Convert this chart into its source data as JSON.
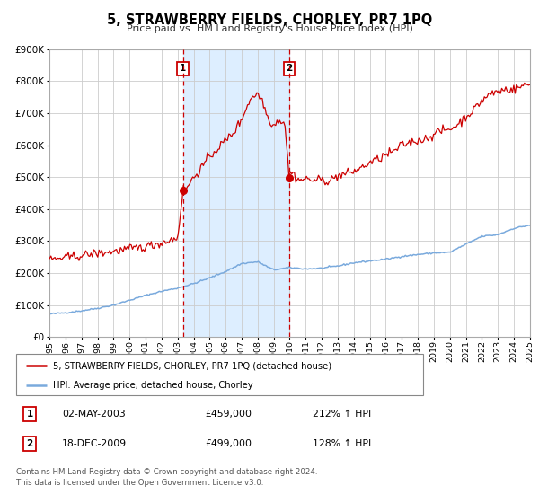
{
  "title": "5, STRAWBERRY FIELDS, CHORLEY, PR7 1PQ",
  "subtitle": "Price paid vs. HM Land Registry's House Price Index (HPI)",
  "red_label": "5, STRAWBERRY FIELDS, CHORLEY, PR7 1PQ (detached house)",
  "blue_label": "HPI: Average price, detached house, Chorley",
  "marker1_date": "02-MAY-2003",
  "marker1_price": 459000,
  "marker1_hpi": "212% ↑ HPI",
  "marker1_x": 2003.33,
  "marker2_date": "18-DEC-2009",
  "marker2_price": 499000,
  "marker2_hpi": "128% ↑ HPI",
  "marker2_x": 2009.96,
  "xlim": [
    1995,
    2025
  ],
  "ylim": [
    0,
    900000
  ],
  "yticks": [
    0,
    100000,
    200000,
    300000,
    400000,
    500000,
    600000,
    700000,
    800000,
    900000
  ],
  "ytick_labels": [
    "£0",
    "£100K",
    "£200K",
    "£300K",
    "£400K",
    "£500K",
    "£600K",
    "£700K",
    "£800K",
    "£900K"
  ],
  "red_color": "#cc0000",
  "blue_color": "#7aaadd",
  "shaded_color": "#ddeeff",
  "grid_color": "#cccccc",
  "background_color": "#ffffff",
  "footnote_line1": "Contains HM Land Registry data © Crown copyright and database right 2024.",
  "footnote_line2": "This data is licensed under the Open Government Licence v3.0."
}
